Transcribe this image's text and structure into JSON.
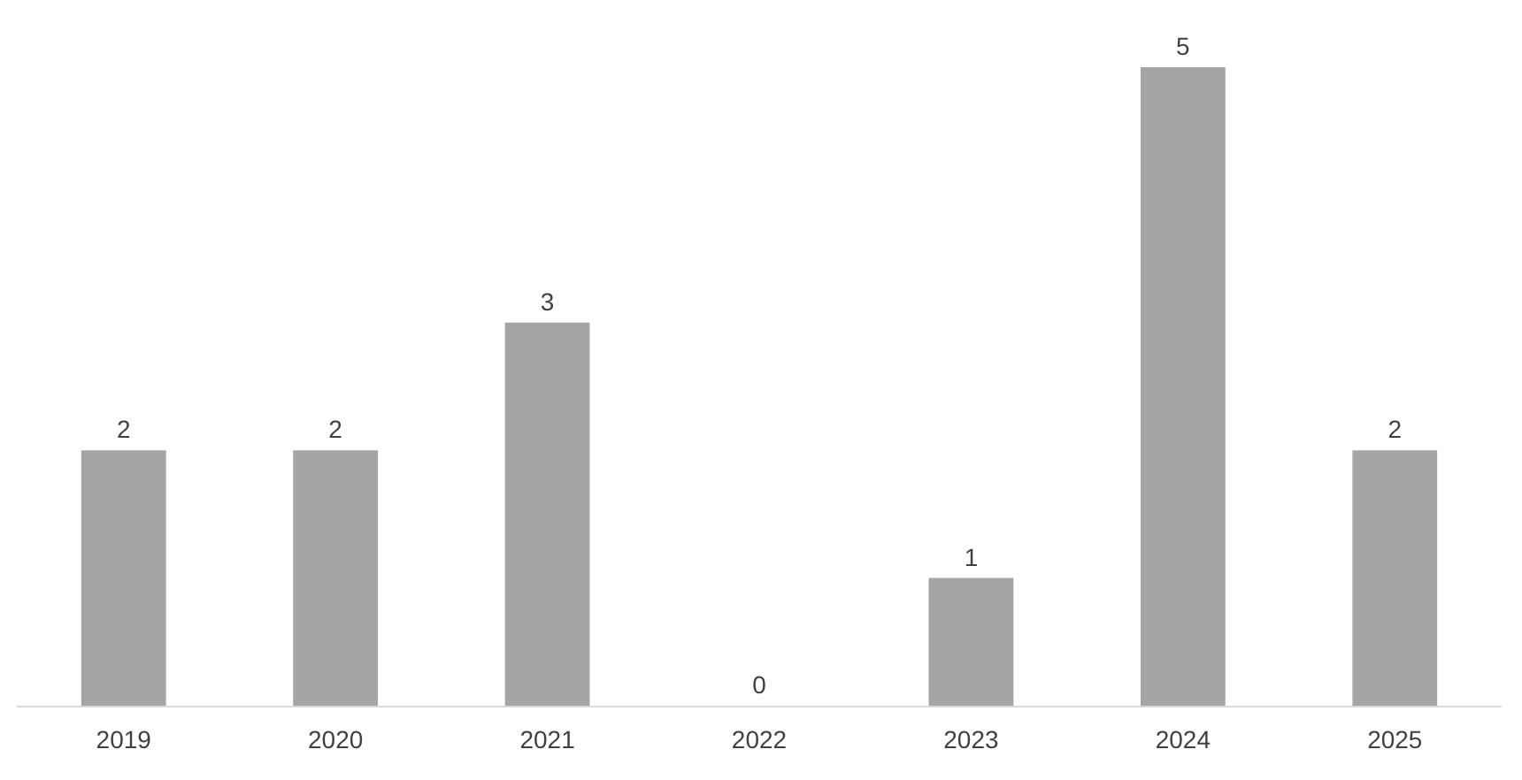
{
  "chart_data": {
    "type": "bar",
    "categories": [
      "2019",
      "2020",
      "2021",
      "2022",
      "2023",
      "2024",
      "2025"
    ],
    "values": [
      2,
      2,
      3,
      0,
      1,
      5,
      2
    ],
    "color": "#a5a5a5",
    "data_labels": true
  }
}
